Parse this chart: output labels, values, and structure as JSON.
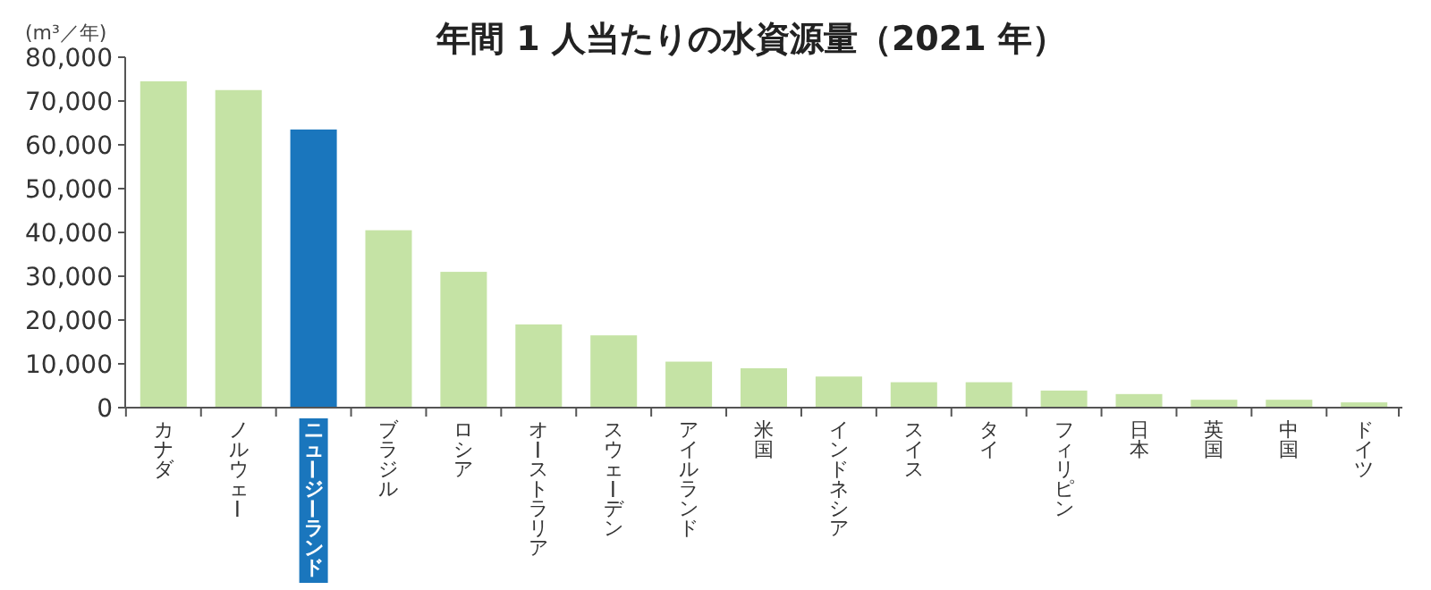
{
  "chart_data": {
    "type": "bar",
    "title": "年間 1 人当たりの水資源量（2021 年）",
    "ylabel": "(m³／年)",
    "categories": [
      "カナダ",
      "ノルウェー",
      "ニュージーランド",
      "ブラジル",
      "ロシア",
      "オーストラリア",
      "スウェーデン",
      "アイルランド",
      "米国",
      "インドネシア",
      "スイス",
      "タイ",
      "フィリピン",
      "日本",
      "英国",
      "中国",
      "ドイツ"
    ],
    "values": [
      74500,
      72500,
      63500,
      40500,
      31000,
      19000,
      16500,
      10500,
      9000,
      7100,
      5800,
      5800,
      3900,
      3100,
      1800,
      1800,
      1200
    ],
    "colors": [
      "#c5e3a5",
      "#c5e3a5",
      "#1a76bd",
      "#c5e3a5",
      "#c5e3a5",
      "#c5e3a5",
      "#c5e3a5",
      "#c5e3a5",
      "#c5e3a5",
      "#c5e3a5",
      "#c5e3a5",
      "#c5e3a5",
      "#c5e3a5",
      "#c5e3a5",
      "#c5e3a5",
      "#c5e3a5",
      "#c5e3a5"
    ],
    "ylim": [
      0,
      80000
    ],
    "yticks": [
      {
        "value": 0,
        "label": "0"
      },
      {
        "value": 10000,
        "label": "10,000"
      },
      {
        "value": 20000,
        "label": "20,000"
      },
      {
        "value": 30000,
        "label": "30,000"
      },
      {
        "value": 40000,
        "label": "40,000"
      },
      {
        "value": 50000,
        "label": "50,000"
      },
      {
        "value": 60000,
        "label": "60,000"
      },
      {
        "value": 70000,
        "label": "70,000"
      },
      {
        "value": 80000,
        "label": "80,000"
      }
    ],
    "grid": false
  }
}
